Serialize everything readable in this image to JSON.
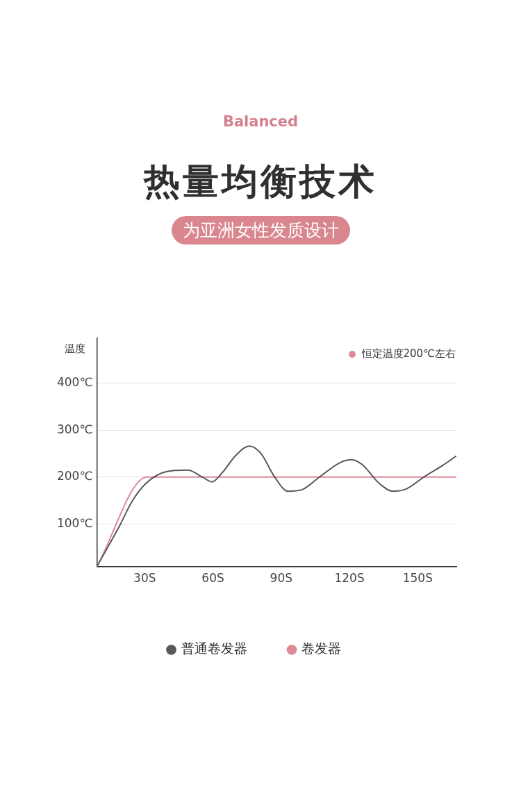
{
  "chart_data": {
    "type": "line",
    "title": "热量均衡技术",
    "subtitle": "为亚洲女性发质设计",
    "annotations": [
      "Balanced",
      "恒定温度200℃左右"
    ],
    "ylabel": "温度",
    "xlim": [
      9,
      167
    ],
    "xticks": [
      {
        "value": 30,
        "label": "30S"
      },
      {
        "value": 60,
        "label": "60S"
      },
      {
        "value": 90,
        "label": "90S"
      },
      {
        "value": 120,
        "label": "120S"
      },
      {
        "value": 150,
        "label": "150S"
      }
    ],
    "ylim": [
      10,
      495
    ],
    "yticks": [
      {
        "value": 100,
        "label": "100℃"
      },
      {
        "value": 200,
        "label": "200℃"
      },
      {
        "value": 300,
        "label": "300℃"
      },
      {
        "value": 400,
        "label": "400℃"
      }
    ],
    "grid": "y",
    "legend": "bottom",
    "marker": "none",
    "line_style": "solid",
    "series": [
      {
        "name": "普通卷发器",
        "color": "#58585b",
        "x": [
          9,
          19,
          24.5,
          30.6,
          39.8,
          49,
          55,
          59.7,
          64,
          70,
          76,
          81,
          87,
          93,
          99,
          107,
          116,
          121,
          125.5,
          133,
          139,
          145,
          153,
          161,
          167
        ],
        "values": [
          10,
          97,
          149,
          187,
          212,
          215,
          201,
          190,
          209,
          246,
          266,
          251,
          201,
          170,
          173,
          201,
          231,
          237,
          227,
          187,
          170,
          175,
          201,
          225,
          245
        ]
      },
      {
        "name": "卷发器",
        "color": "#dc8a96",
        "x": [
          9,
          31,
          167
        ],
        "values": [
          10,
          200,
          200
        ]
      }
    ]
  }
}
